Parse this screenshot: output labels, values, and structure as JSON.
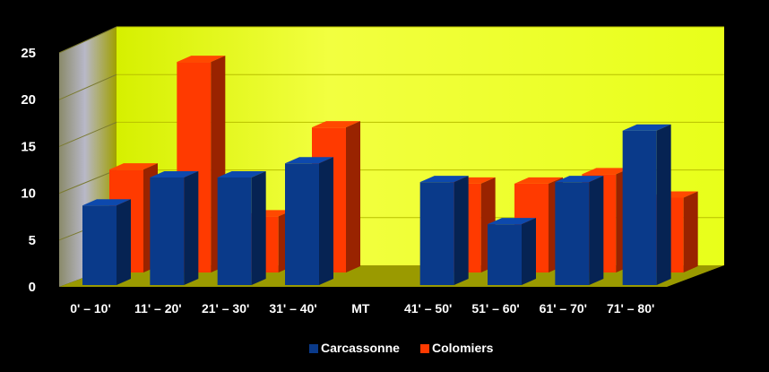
{
  "chart_data": {
    "type": "bar",
    "style": "3d-clustered-column",
    "categories": [
      "0' – 10'",
      "11' – 20'",
      "21' – 30'",
      "31' – 40'",
      "MT",
      "41' – 50'",
      "51' – 60'",
      "61' – 70'",
      "71' – 80'"
    ],
    "series": [
      {
        "name": "Carcassonne",
        "color": "#0a3a8a",
        "values": [
          8.5,
          11.5,
          11.5,
          13,
          0,
          11,
          6.5,
          11,
          16.5
        ]
      },
      {
        "name": "Colomiers",
        "color": "#ff3a00",
        "values": [
          11,
          22.5,
          6,
          15.5,
          0,
          9.5,
          9.5,
          10.5,
          8
        ]
      }
    ],
    "ylim": [
      0,
      25
    ],
    "yticks": [
      "0",
      "5",
      "10",
      "15",
      "20",
      "25"
    ],
    "grid": true,
    "legend_position": "bottom",
    "background_color": "#000000",
    "wall_color": "#eaff1a",
    "floor_color": "#9a9a00"
  }
}
